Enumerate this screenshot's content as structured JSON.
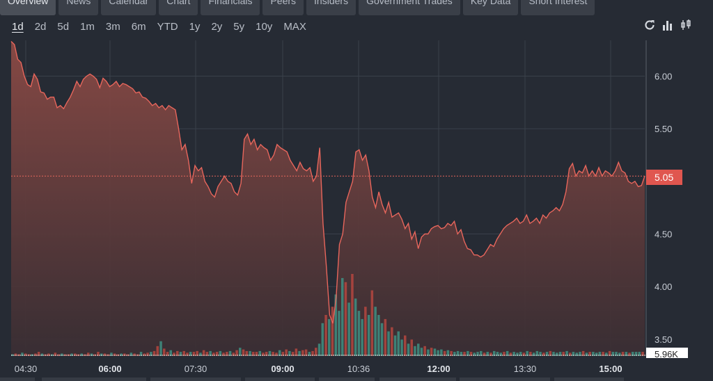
{
  "tabs": [
    {
      "label": "Overview",
      "active": true
    },
    {
      "label": "News"
    },
    {
      "label": "Calendar"
    },
    {
      "label": "Chart"
    },
    {
      "label": "Financials"
    },
    {
      "label": "Peers"
    },
    {
      "label": "Insiders"
    },
    {
      "label": "Government Trades"
    },
    {
      "label": "Key Data"
    },
    {
      "label": "Short Interest"
    }
  ],
  "ranges": [
    {
      "label": "1d",
      "active": true
    },
    {
      "label": "2d"
    },
    {
      "label": "5d"
    },
    {
      "label": "1m"
    },
    {
      "label": "3m"
    },
    {
      "label": "6m"
    },
    {
      "label": "YTD"
    },
    {
      "label": "1y"
    },
    {
      "label": "2y"
    },
    {
      "label": "5y"
    },
    {
      "label": "10y"
    },
    {
      "label": "MAX"
    }
  ],
  "tools": [
    "refresh-icon",
    "bar-chart-icon",
    "candlestick-icon"
  ],
  "colors": {
    "line": "#e8665c",
    "area_top": "#8b4a45",
    "area_bottom": "#3a2e33",
    "vol_up": "#3f8f82",
    "vol_down": "#b5473f",
    "badge": "#e0564f"
  },
  "chart_data": {
    "type": "area",
    "y_ticks": [
      "6.00",
      "5.50",
      "5.05",
      "4.50",
      "4.00",
      "3.50"
    ],
    "y_tick_values": [
      6.0,
      5.5,
      5.05,
      4.5,
      4.0,
      3.5
    ],
    "x_ticks": [
      {
        "label": "04:30",
        "bold": false
      },
      {
        "label": "06:00",
        "bold": true
      },
      {
        "label": "07:30",
        "bold": false
      },
      {
        "label": "09:00",
        "bold": true
      },
      {
        "label": "10:36",
        "bold": false
      },
      {
        "label": "12:00",
        "bold": true
      },
      {
        "label": "13:30",
        "bold": false
      },
      {
        "label": "15:00",
        "bold": true
      }
    ],
    "ylim": [
      3.34,
      6.34
    ],
    "last_price": "5.05",
    "last_volume": "5.96K",
    "prices": [
      6.33,
      6.3,
      6.16,
      6.13,
      6.0,
      5.92,
      5.9,
      6.02,
      5.97,
      5.85,
      5.84,
      5.78,
      5.8,
      5.8,
      5.7,
      5.72,
      5.69,
      5.75,
      5.8,
      5.87,
      5.95,
      5.9,
      5.97,
      6.0,
      6.02,
      6.0,
      5.97,
      5.89,
      5.98,
      5.95,
      5.9,
      5.92,
      5.95,
      5.9,
      5.93,
      5.92,
      5.9,
      5.88,
      5.84,
      5.85,
      5.8,
      5.79,
      5.76,
      5.72,
      5.74,
      5.7,
      5.72,
      5.68,
      5.72,
      5.7,
      5.68,
      5.5,
      5.3,
      5.35,
      5.2,
      4.98,
      5.15,
      5.1,
      5.13,
      5.0,
      4.95,
      4.88,
      4.85,
      4.95,
      5.0,
      5.05,
      5.0,
      4.98,
      4.9,
      4.87,
      4.98,
      5.4,
      5.45,
      5.35,
      5.4,
      5.3,
      5.35,
      5.32,
      5.3,
      5.2,
      5.25,
      5.35,
      5.32,
      5.3,
      5.28,
      5.2,
      5.15,
      5.1,
      5.18,
      5.12,
      5.1,
      5.13,
      5.0,
      5.05,
      5.32,
      4.6,
      4.2,
      3.73,
      3.65,
      3.9,
      4.4,
      4.5,
      4.8,
      4.9,
      5.0,
      5.28,
      5.3,
      5.2,
      5.25,
      5.1,
      4.85,
      4.75,
      4.9,
      4.78,
      4.7,
      4.8,
      4.66,
      4.68,
      4.7,
      4.64,
      4.55,
      4.6,
      4.45,
      4.52,
      4.36,
      4.47,
      4.5,
      4.5,
      4.55,
      4.57,
      4.58,
      4.55,
      4.56,
      4.6,
      4.58,
      4.62,
      4.5,
      4.54,
      4.43,
      4.36,
      4.35,
      4.3,
      4.3,
      4.28,
      4.3,
      4.35,
      4.4,
      4.38,
      4.45,
      4.5,
      4.55,
      4.58,
      4.6,
      4.62,
      4.65,
      4.6,
      4.62,
      4.68,
      4.6,
      4.62,
      4.65,
      4.6,
      4.68,
      4.65,
      4.7,
      4.72,
      4.75,
      4.72,
      4.78,
      4.9,
      5.12,
      5.17,
      5.05,
      5.1,
      5.08,
      5.15,
      5.05,
      5.1,
      5.05,
      5.13,
      5.05,
      5.1,
      5.08,
      5.05,
      5.1,
      5.18,
      5.1,
      5.08,
      5.0,
      4.98,
      5.0,
      4.95,
      4.96,
      5.05
    ],
    "volumes": [
      0.02,
      0.03,
      0.02,
      0.04,
      0.03,
      0.02,
      0.02,
      0.03,
      0.05,
      0.03,
      0.02,
      0.03,
      0.02,
      0.04,
      0.02,
      0.03,
      0.02,
      0.02,
      0.03,
      0.03,
      0.02,
      0.03,
      0.02,
      0.04,
      0.03,
      0.02,
      0.05,
      0.03,
      0.03,
      0.02,
      0.04,
      0.03,
      0.02,
      0.03,
      0.03,
      0.02,
      0.04,
      0.03,
      0.02,
      0.05,
      0.03,
      0.04,
      0.05,
      0.06,
      0.12,
      0.18,
      0.09,
      0.05,
      0.07,
      0.04,
      0.06,
      0.05,
      0.06,
      0.04,
      0.05,
      0.05,
      0.06,
      0.04,
      0.07,
      0.05,
      0.06,
      0.04,
      0.05,
      0.06,
      0.04,
      0.05,
      0.06,
      0.04,
      0.07,
      0.1,
      0.08,
      0.06,
      0.06,
      0.05,
      0.05,
      0.06,
      0.04,
      0.05,
      0.06,
      0.05,
      0.04,
      0.07,
      0.05,
      0.08,
      0.06,
      0.05,
      0.09,
      0.06,
      0.07,
      0.08,
      0.05,
      0.06,
      0.1,
      0.15,
      0.4,
      0.5,
      0.45,
      0.6,
      0.75,
      0.55,
      0.95,
      0.9,
      0.65,
      1.0,
      0.7,
      0.55,
      0.45,
      0.6,
      0.5,
      0.8,
      0.6,
      0.5,
      0.4,
      0.45,
      0.3,
      0.35,
      0.25,
      0.3,
      0.2,
      0.25,
      0.15,
      0.2,
      0.12,
      0.15,
      0.1,
      0.12,
      0.08,
      0.1,
      0.09,
      0.07,
      0.08,
      0.06,
      0.07,
      0.06,
      0.05,
      0.06,
      0.05,
      0.05,
      0.06,
      0.05,
      0.04,
      0.05,
      0.06,
      0.04,
      0.05,
      0.04,
      0.06,
      0.05,
      0.04,
      0.05,
      0.06,
      0.04,
      0.05,
      0.04,
      0.05,
      0.04,
      0.06,
      0.05,
      0.04,
      0.06,
      0.05,
      0.04,
      0.05,
      0.06,
      0.05,
      0.04,
      0.05,
      0.05,
      0.06,
      0.04,
      0.05,
      0.04,
      0.05,
      0.06,
      0.04,
      0.05,
      0.05,
      0.04,
      0.05,
      0.05,
      0.04,
      0.06,
      0.05,
      0.05,
      0.04,
      0.05,
      0.05,
      0.04,
      0.05,
      0.05,
      0.05,
      0.05
    ]
  }
}
